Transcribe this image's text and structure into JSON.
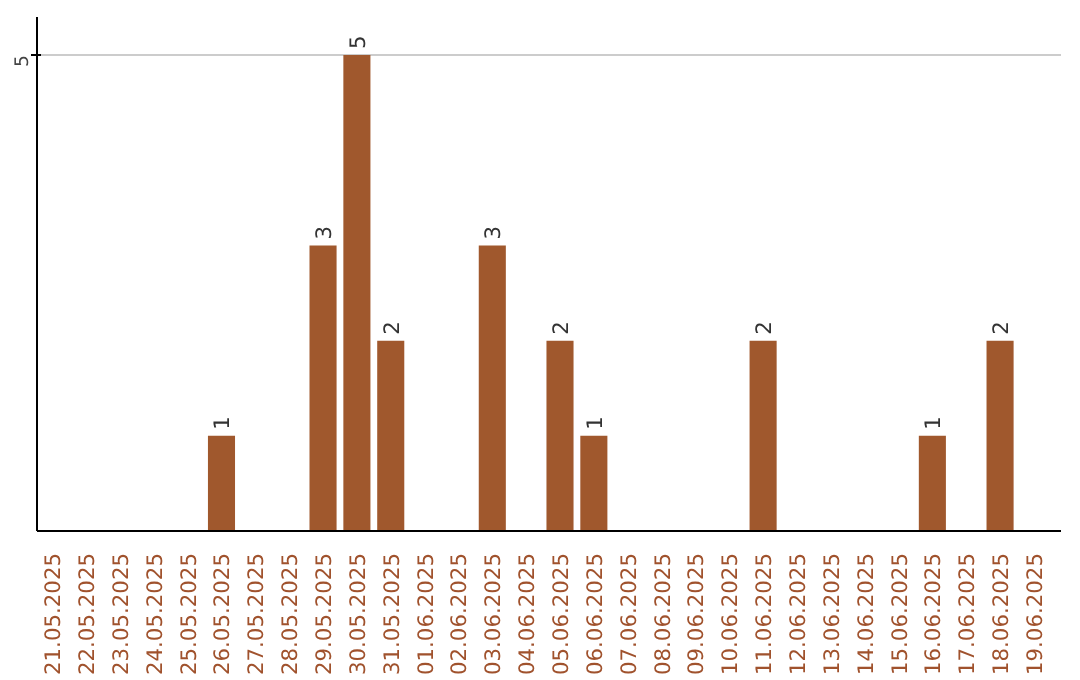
{
  "chart_data": {
    "type": "bar",
    "categories": [
      "21.05.2025",
      "22.05.2025",
      "23.05.2025",
      "24.05.2025",
      "25.05.2025",
      "26.05.2025",
      "27.05.2025",
      "28.05.2025",
      "29.05.2025",
      "30.05.2025",
      "31.05.2025",
      "01.06.2025",
      "02.06.2025",
      "03.06.2025",
      "04.06.2025",
      "05.06.2025",
      "06.06.2025",
      "07.06.2025",
      "08.06.2025",
      "09.06.2025",
      "10.06.2025",
      "11.06.2025",
      "12.06.2025",
      "13.06.2025",
      "14.06.2025",
      "15.06.2025",
      "16.06.2025",
      "17.06.2025",
      "18.06.2025",
      "19.06.2025"
    ],
    "values": [
      0,
      0,
      0,
      0,
      0,
      1,
      0,
      0,
      3,
      5,
      2,
      0,
      0,
      3,
      0,
      2,
      1,
      0,
      0,
      0,
      0,
      2,
      0,
      0,
      0,
      0,
      1,
      0,
      2,
      0
    ],
    "value_labels": [
      null,
      null,
      null,
      null,
      null,
      "1",
      null,
      null,
      "3",
      "5",
      "2",
      null,
      null,
      "3",
      null,
      "2",
      "1",
      null,
      null,
      null,
      null,
      "2",
      null,
      null,
      null,
      null,
      "1",
      null,
      "2",
      null
    ],
    "color": "#a0582d",
    "ylim": [
      0,
      5.4
    ],
    "yticks": [
      5
    ],
    "grid": "y"
  }
}
